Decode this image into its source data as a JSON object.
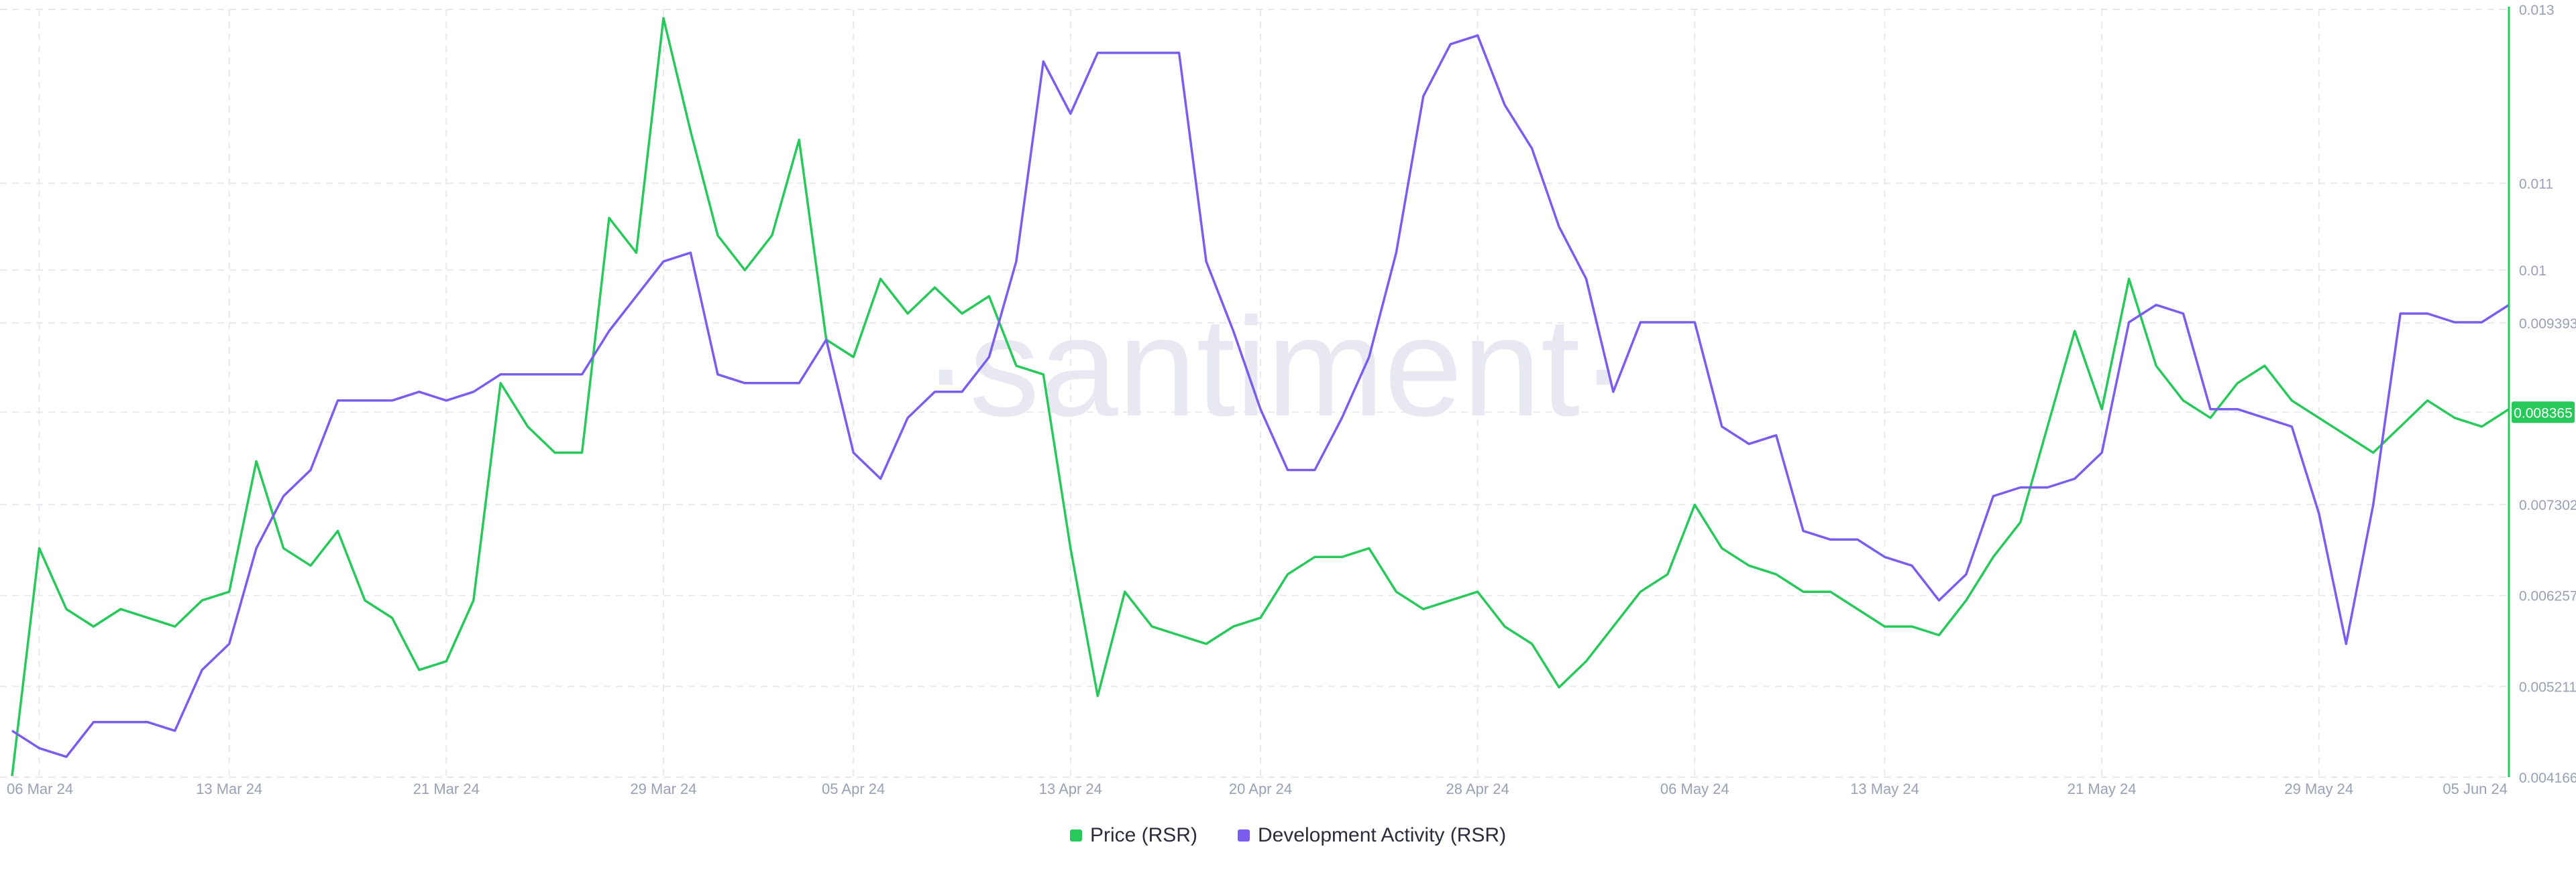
{
  "watermark": "·santiment·",
  "legend": {
    "price_label": "Price (RSR)",
    "dev_label": "Development Activity (RSR)"
  },
  "colors": {
    "price": "#26c95a",
    "dev": "#7b5cf0",
    "grid": "#e8e9ef",
    "tick_text": "#9aa0b5",
    "axis": "#26c95a",
    "watermark": "#e7e8f1"
  },
  "chart_data": {
    "type": "line",
    "title": "",
    "x_ticks": [
      "06 Mar 24",
      "13 Mar 24",
      "21 Mar 24",
      "29 Mar 24",
      "05 Apr 24",
      "13 Apr 24",
      "20 Apr 24",
      "28 Apr 24",
      "06 May 24",
      "13 May 24",
      "21 May 24",
      "29 May 24",
      "05 Jun 24"
    ],
    "x_range": [
      "2024-03-05",
      "2024-06-05"
    ],
    "y_ticks": [
      "0.013",
      "0.011",
      "0.01",
      "0.009393",
      "0.008365",
      "0.007302",
      "0.006257",
      "0.005211",
      "0.004166"
    ],
    "y_range": [
      0.004166,
      0.013
    ],
    "current_value_label": "0.008365",
    "series": [
      {
        "name": "Price (RSR)",
        "color": "#26c95a",
        "points": [
          [
            "2024-03-05",
            0.00418
          ],
          [
            "2024-03-06",
            0.0068
          ],
          [
            "2024-03-07",
            0.0061
          ],
          [
            "2024-03-08",
            0.0059
          ],
          [
            "2024-03-09",
            0.0061
          ],
          [
            "2024-03-10",
            0.006
          ],
          [
            "2024-03-11",
            0.0059
          ],
          [
            "2024-03-12",
            0.0062
          ],
          [
            "2024-03-13",
            0.0063
          ],
          [
            "2024-03-14",
            0.0078
          ],
          [
            "2024-03-15",
            0.0068
          ],
          [
            "2024-03-16",
            0.0066
          ],
          [
            "2024-03-17",
            0.007
          ],
          [
            "2024-03-18",
            0.0062
          ],
          [
            "2024-03-19",
            0.006
          ],
          [
            "2024-03-20",
            0.0054
          ],
          [
            "2024-03-21",
            0.0055
          ],
          [
            "2024-03-22",
            0.0062
          ],
          [
            "2024-03-23",
            0.0087
          ],
          [
            "2024-03-24",
            0.0082
          ],
          [
            "2024-03-25",
            0.0079
          ],
          [
            "2024-03-26",
            0.0079
          ],
          [
            "2024-03-27",
            0.0106
          ],
          [
            "2024-03-28",
            0.0102
          ],
          [
            "2024-03-29",
            0.0129
          ],
          [
            "2024-03-30",
            0.0116
          ],
          [
            "2024-03-31",
            0.0104
          ],
          [
            "2024-04-01",
            0.01
          ],
          [
            "2024-04-02",
            0.0104
          ],
          [
            "2024-04-03",
            0.0115
          ],
          [
            "2024-04-04",
            0.0092
          ],
          [
            "2024-04-05",
            0.009
          ],
          [
            "2024-04-06",
            0.0099
          ],
          [
            "2024-04-07",
            0.0095
          ],
          [
            "2024-04-08",
            0.0098
          ],
          [
            "2024-04-09",
            0.0095
          ],
          [
            "2024-04-10",
            0.0097
          ],
          [
            "2024-04-11",
            0.0089
          ],
          [
            "2024-04-12",
            0.0088
          ],
          [
            "2024-04-13",
            0.0068
          ],
          [
            "2024-04-14",
            0.0051
          ],
          [
            "2024-04-15",
            0.0063
          ],
          [
            "2024-04-16",
            0.0059
          ],
          [
            "2024-04-17",
            0.0058
          ],
          [
            "2024-04-18",
            0.0057
          ],
          [
            "2024-04-19",
            0.0059
          ],
          [
            "2024-04-20",
            0.006
          ],
          [
            "2024-04-21",
            0.0065
          ],
          [
            "2024-04-22",
            0.0067
          ],
          [
            "2024-04-23",
            0.0067
          ],
          [
            "2024-04-24",
            0.0068
          ],
          [
            "2024-04-25",
            0.0063
          ],
          [
            "2024-04-26",
            0.0061
          ],
          [
            "2024-04-27",
            0.0062
          ],
          [
            "2024-04-28",
            0.0063
          ],
          [
            "2024-04-29",
            0.0059
          ],
          [
            "2024-04-30",
            0.0057
          ],
          [
            "2024-05-01",
            0.0052
          ],
          [
            "2024-05-02",
            0.0055
          ],
          [
            "2024-05-03",
            0.0059
          ],
          [
            "2024-05-04",
            0.0063
          ],
          [
            "2024-05-05",
            0.0065
          ],
          [
            "2024-05-06",
            0.0073
          ],
          [
            "2024-05-07",
            0.0068
          ],
          [
            "2024-05-08",
            0.0066
          ],
          [
            "2024-05-09",
            0.0065
          ],
          [
            "2024-05-10",
            0.0063
          ],
          [
            "2024-05-11",
            0.0063
          ],
          [
            "2024-05-12",
            0.0061
          ],
          [
            "2024-05-13",
            0.0059
          ],
          [
            "2024-05-14",
            0.0059
          ],
          [
            "2024-05-15",
            0.0058
          ],
          [
            "2024-05-16",
            0.0062
          ],
          [
            "2024-05-17",
            0.0067
          ],
          [
            "2024-05-18",
            0.0071
          ],
          [
            "2024-05-19",
            0.0082
          ],
          [
            "2024-05-20",
            0.0093
          ],
          [
            "2024-05-21",
            0.0084
          ],
          [
            "2024-05-22",
            0.0099
          ],
          [
            "2024-05-23",
            0.0089
          ],
          [
            "2024-05-24",
            0.0085
          ],
          [
            "2024-05-25",
            0.0083
          ],
          [
            "2024-05-26",
            0.0087
          ],
          [
            "2024-05-27",
            0.0089
          ],
          [
            "2024-05-28",
            0.0085
          ],
          [
            "2024-05-29",
            0.0083
          ],
          [
            "2024-05-30",
            0.0081
          ],
          [
            "2024-05-31",
            0.0079
          ],
          [
            "2024-06-01",
            0.0082
          ],
          [
            "2024-06-02",
            0.0085
          ],
          [
            "2024-06-03",
            0.0083
          ],
          [
            "2024-06-04",
            0.0082
          ],
          [
            "2024-06-05",
            0.0084
          ]
        ]
      },
      {
        "name": "Development Activity (RSR)",
        "color": "#7b5cf0",
        "points": [
          [
            "2024-03-05",
            0.0047
          ],
          [
            "2024-03-06",
            0.0045
          ],
          [
            "2024-03-07",
            0.0044
          ],
          [
            "2024-03-08",
            0.0048
          ],
          [
            "2024-03-09",
            0.0048
          ],
          [
            "2024-03-10",
            0.0048
          ],
          [
            "2024-03-11",
            0.0047
          ],
          [
            "2024-03-12",
            0.0054
          ],
          [
            "2024-03-13",
            0.0057
          ],
          [
            "2024-03-14",
            0.0068
          ],
          [
            "2024-03-15",
            0.0074
          ],
          [
            "2024-03-16",
            0.0077
          ],
          [
            "2024-03-17",
            0.0085
          ],
          [
            "2024-03-18",
            0.0085
          ],
          [
            "2024-03-19",
            0.0085
          ],
          [
            "2024-03-20",
            0.0086
          ],
          [
            "2024-03-21",
            0.0085
          ],
          [
            "2024-03-22",
            0.0086
          ],
          [
            "2024-03-23",
            0.0088
          ],
          [
            "2024-03-24",
            0.0088
          ],
          [
            "2024-03-25",
            0.0088
          ],
          [
            "2024-03-26",
            0.0088
          ],
          [
            "2024-03-27",
            0.0093
          ],
          [
            "2024-03-28",
            0.0097
          ],
          [
            "2024-03-29",
            0.0101
          ],
          [
            "2024-03-30",
            0.0102
          ],
          [
            "2024-03-31",
            0.0088
          ],
          [
            "2024-04-01",
            0.0087
          ],
          [
            "2024-04-02",
            0.0087
          ],
          [
            "2024-04-03",
            0.0087
          ],
          [
            "2024-04-04",
            0.0092
          ],
          [
            "2024-04-05",
            0.0079
          ],
          [
            "2024-04-06",
            0.0076
          ],
          [
            "2024-04-07",
            0.0083
          ],
          [
            "2024-04-08",
            0.0086
          ],
          [
            "2024-04-09",
            0.0086
          ],
          [
            "2024-04-10",
            0.009
          ],
          [
            "2024-04-11",
            0.0101
          ],
          [
            "2024-04-12",
            0.0124
          ],
          [
            "2024-04-13",
            0.0118
          ],
          [
            "2024-04-14",
            0.0125
          ],
          [
            "2024-04-15",
            0.0125
          ],
          [
            "2024-04-16",
            0.0125
          ],
          [
            "2024-04-17",
            0.0125
          ],
          [
            "2024-04-18",
            0.0101
          ],
          [
            "2024-04-19",
            0.0093
          ],
          [
            "2024-04-20",
            0.0084
          ],
          [
            "2024-04-21",
            0.0077
          ],
          [
            "2024-04-22",
            0.0077
          ],
          [
            "2024-04-23",
            0.0083
          ],
          [
            "2024-04-24",
            0.009
          ],
          [
            "2024-04-25",
            0.0102
          ],
          [
            "2024-04-26",
            0.012
          ],
          [
            "2024-04-27",
            0.0126
          ],
          [
            "2024-04-28",
            0.0127
          ],
          [
            "2024-04-29",
            0.0119
          ],
          [
            "2024-04-30",
            0.0114
          ],
          [
            "2024-05-01",
            0.0105
          ],
          [
            "2024-05-02",
            0.0099
          ],
          [
            "2024-05-03",
            0.0086
          ],
          [
            "2024-05-04",
            0.0094
          ],
          [
            "2024-05-05",
            0.0094
          ],
          [
            "2024-05-06",
            0.0094
          ],
          [
            "2024-05-07",
            0.0082
          ],
          [
            "2024-05-08",
            0.008
          ],
          [
            "2024-05-09",
            0.0081
          ],
          [
            "2024-05-10",
            0.007
          ],
          [
            "2024-05-11",
            0.0069
          ],
          [
            "2024-05-12",
            0.0069
          ],
          [
            "2024-05-13",
            0.0067
          ],
          [
            "2024-05-14",
            0.0066
          ],
          [
            "2024-05-15",
            0.0062
          ],
          [
            "2024-05-16",
            0.0065
          ],
          [
            "2024-05-17",
            0.0074
          ],
          [
            "2024-05-18",
            0.0075
          ],
          [
            "2024-05-19",
            0.0075
          ],
          [
            "2024-05-20",
            0.0076
          ],
          [
            "2024-05-21",
            0.0079
          ],
          [
            "2024-05-22",
            0.0094
          ],
          [
            "2024-05-23",
            0.0096
          ],
          [
            "2024-05-24",
            0.0095
          ],
          [
            "2024-05-25",
            0.0084
          ],
          [
            "2024-05-26",
            0.0084
          ],
          [
            "2024-05-27",
            0.0083
          ],
          [
            "2024-05-28",
            0.0082
          ],
          [
            "2024-05-29",
            0.0072
          ],
          [
            "2024-05-30",
            0.0057
          ],
          [
            "2024-05-31",
            0.0073
          ],
          [
            "2024-06-01",
            0.0095
          ],
          [
            "2024-06-02",
            0.0095
          ],
          [
            "2024-06-03",
            0.0094
          ],
          [
            "2024-06-04",
            0.0094
          ],
          [
            "2024-06-05",
            0.0096
          ]
        ]
      }
    ],
    "grid": true,
    "legend_position": "bottom-center"
  }
}
